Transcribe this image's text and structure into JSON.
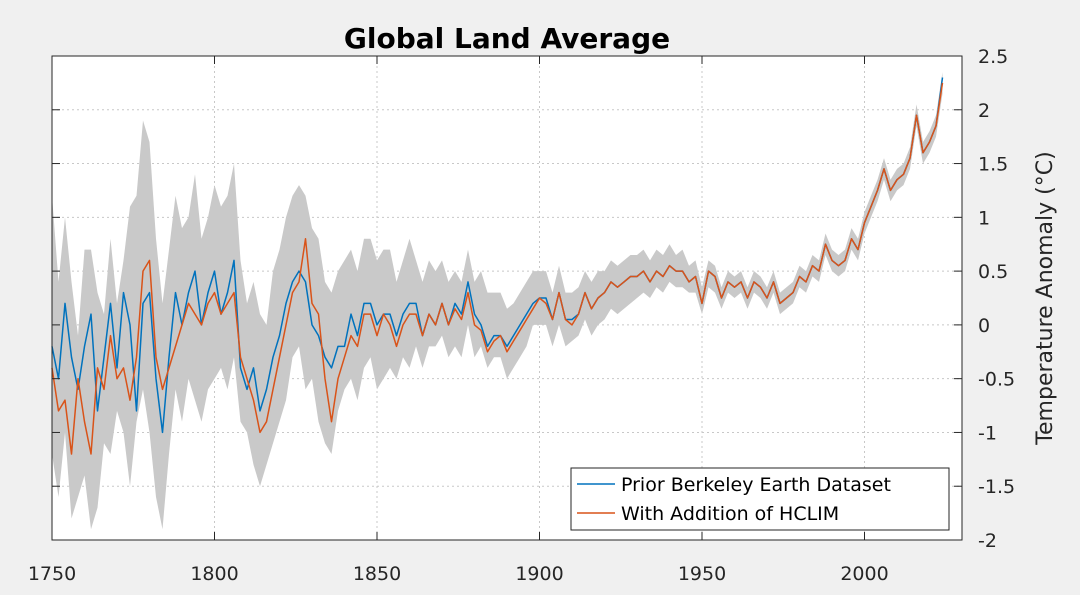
{
  "chart_data": {
    "type": "line",
    "title": "Global Land Average",
    "xlabel": "",
    "ylabel": "Temperature Anomaly (°C)",
    "xlim": [
      1750,
      2030
    ],
    "ylim": [
      -2,
      2.5
    ],
    "y_axis_side": "right",
    "grid": true,
    "x_ticks": [
      1750,
      1800,
      1850,
      1900,
      1950,
      2000
    ],
    "x_tick_labels": [
      "1750",
      "1800",
      "1850",
      "1900",
      "1950",
      "2000"
    ],
    "y_ticks": [
      -2,
      -1.5,
      -1,
      -0.5,
      0,
      0.5,
      1,
      1.5,
      2,
      2.5
    ],
    "y_tick_labels": [
      "-2",
      "-1.5",
      "-1",
      "-0.5",
      "0",
      "0.5",
      "1",
      "1.5",
      "2",
      "2.5"
    ],
    "legend_position": "bottom-right",
    "x": [
      1750,
      1752,
      1754,
      1756,
      1758,
      1760,
      1762,
      1764,
      1766,
      1768,
      1770,
      1772,
      1774,
      1776,
      1778,
      1780,
      1782,
      1784,
      1786,
      1788,
      1790,
      1792,
      1794,
      1796,
      1798,
      1800,
      1802,
      1804,
      1806,
      1808,
      1810,
      1812,
      1814,
      1816,
      1818,
      1820,
      1822,
      1824,
      1826,
      1828,
      1830,
      1832,
      1834,
      1836,
      1838,
      1840,
      1842,
      1844,
      1846,
      1848,
      1850,
      1852,
      1854,
      1856,
      1858,
      1860,
      1862,
      1864,
      1866,
      1868,
      1870,
      1872,
      1874,
      1876,
      1878,
      1880,
      1882,
      1884,
      1886,
      1888,
      1890,
      1892,
      1894,
      1896,
      1898,
      1900,
      1902,
      1904,
      1906,
      1908,
      1910,
      1912,
      1914,
      1916,
      1918,
      1920,
      1922,
      1924,
      1926,
      1928,
      1930,
      1932,
      1934,
      1936,
      1938,
      1940,
      1942,
      1944,
      1946,
      1948,
      1950,
      1952,
      1954,
      1956,
      1958,
      1960,
      1962,
      1964,
      1966,
      1968,
      1970,
      1972,
      1974,
      1976,
      1978,
      1980,
      1982,
      1984,
      1986,
      1988,
      1990,
      1992,
      1994,
      1996,
      1998,
      2000,
      2002,
      2004,
      2006,
      2008,
      2010,
      2012,
      2014,
      2016,
      2018,
      2020,
      2022,
      2024
    ],
    "uncertainty_band": {
      "name": "Uncertainty",
      "color": "#c9c9c9",
      "lower": [
        -1.2,
        -1.6,
        -1.0,
        -1.8,
        -1.6,
        -1.4,
        -1.9,
        -1.7,
        -1.1,
        -1.2,
        -0.8,
        -1.0,
        -1.5,
        -0.9,
        -0.6,
        -1.0,
        -1.6,
        -1.9,
        -1.2,
        -0.6,
        -0.9,
        -0.5,
        -0.7,
        -0.9,
        -0.6,
        -0.5,
        -0.4,
        -0.6,
        -0.3,
        -0.9,
        -1.0,
        -1.3,
        -1.5,
        -1.3,
        -1.1,
        -0.9,
        -0.7,
        -0.3,
        -0.2,
        -0.6,
        -0.5,
        -0.9,
        -1.1,
        -1.2,
        -0.8,
        -0.6,
        -0.5,
        -0.7,
        -0.4,
        -0.3,
        -0.6,
        -0.5,
        -0.4,
        -0.5,
        -0.3,
        -0.4,
        -0.2,
        -0.4,
        -0.2,
        -0.2,
        -0.1,
        -0.3,
        -0.2,
        -0.3,
        0.0,
        -0.3,
        -0.2,
        -0.4,
        -0.3,
        -0.3,
        -0.5,
        -0.4,
        -0.3,
        -0.2,
        0.0,
        0.0,
        0.0,
        -0.2,
        0.0,
        -0.2,
        -0.15,
        -0.1,
        0.05,
        -0.1,
        0.0,
        0.05,
        0.15,
        0.1,
        0.15,
        0.2,
        0.25,
        0.3,
        0.25,
        0.35,
        0.3,
        0.4,
        0.35,
        0.35,
        0.3,
        0.3,
        0.1,
        0.35,
        0.3,
        0.15,
        0.3,
        0.25,
        0.3,
        0.15,
        0.3,
        0.25,
        0.15,
        0.3,
        0.1,
        0.15,
        0.2,
        0.35,
        0.3,
        0.45,
        0.4,
        0.65,
        0.5,
        0.45,
        0.5,
        0.7,
        0.6,
        0.85,
        1.0,
        1.15,
        1.35,
        1.15,
        1.25,
        1.3,
        1.45,
        1.85,
        1.5,
        1.6,
        1.75,
        2.15
      ],
      "upper": [
        1.2,
        0.4,
        1.0,
        0.4,
        -0.1,
        0.7,
        0.7,
        0.3,
        0.1,
        0.8,
        0.2,
        0.6,
        1.1,
        1.2,
        1.9,
        1.7,
        0.8,
        0.2,
        0.7,
        1.2,
        0.9,
        1.0,
        1.4,
        0.8,
        1.0,
        1.3,
        1.1,
        1.2,
        1.5,
        0.6,
        0.2,
        0.4,
        0.1,
        0.0,
        0.5,
        0.7,
        1.0,
        1.2,
        1.3,
        1.2,
        0.9,
        0.8,
        0.4,
        0.3,
        0.5,
        0.6,
        0.7,
        0.5,
        0.8,
        0.8,
        0.6,
        0.7,
        0.7,
        0.4,
        0.6,
        0.8,
        0.6,
        0.4,
        0.6,
        0.5,
        0.6,
        0.4,
        0.5,
        0.4,
        0.7,
        0.4,
        0.5,
        0.3,
        0.3,
        0.3,
        0.15,
        0.2,
        0.3,
        0.4,
        0.5,
        0.5,
        0.5,
        0.3,
        0.55,
        0.3,
        0.3,
        0.35,
        0.5,
        0.4,
        0.5,
        0.5,
        0.6,
        0.55,
        0.6,
        0.65,
        0.65,
        0.7,
        0.6,
        0.7,
        0.65,
        0.75,
        0.65,
        0.7,
        0.55,
        0.6,
        0.35,
        0.6,
        0.55,
        0.35,
        0.5,
        0.45,
        0.5,
        0.35,
        0.5,
        0.45,
        0.35,
        0.5,
        0.3,
        0.35,
        0.4,
        0.55,
        0.5,
        0.65,
        0.6,
        0.85,
        0.7,
        0.65,
        0.7,
        0.9,
        0.8,
        1.05,
        1.2,
        1.35,
        1.55,
        1.35,
        1.45,
        1.5,
        1.65,
        2.05,
        1.7,
        1.8,
        1.95,
        2.35
      ]
    },
    "series": [
      {
        "name": "Prior Berkeley Earth Dataset",
        "color": "#0072bd",
        "values": [
          -0.2,
          -0.5,
          0.2,
          -0.3,
          -0.6,
          -0.2,
          0.1,
          -0.8,
          -0.3,
          0.2,
          -0.4,
          0.3,
          0.0,
          -0.8,
          0.2,
          0.3,
          -0.5,
          -1.0,
          -0.3,
          0.3,
          0.0,
          0.3,
          0.5,
          0.0,
          0.3,
          0.5,
          0.1,
          0.3,
          0.6,
          -0.4,
          -0.6,
          -0.4,
          -0.8,
          -0.6,
          -0.3,
          -0.1,
          0.2,
          0.4,
          0.5,
          0.4,
          0.0,
          -0.1,
          -0.3,
          -0.4,
          -0.2,
          -0.2,
          0.1,
          -0.1,
          0.2,
          0.2,
          0.0,
          0.1,
          0.1,
          -0.1,
          0.1,
          0.2,
          0.2,
          -0.1,
          0.1,
          0.0,
          0.2,
          0.0,
          0.2,
          0.1,
          0.4,
          0.1,
          0.0,
          -0.2,
          -0.1,
          -0.1,
          -0.2,
          -0.1,
          0.0,
          0.1,
          0.2,
          0.25,
          0.25,
          0.05,
          0.3,
          0.05,
          0.05,
          0.1,
          0.3,
          0.15,
          0.25,
          0.3,
          0.4,
          0.35,
          0.4,
          0.45,
          0.45,
          0.5,
          0.4,
          0.5,
          0.45,
          0.55,
          0.5,
          0.5,
          0.4,
          0.45,
          0.2,
          0.5,
          0.45,
          0.25,
          0.4,
          0.35,
          0.4,
          0.25,
          0.4,
          0.35,
          0.25,
          0.4,
          0.2,
          0.25,
          0.3,
          0.45,
          0.4,
          0.55,
          0.5,
          0.75,
          0.6,
          0.55,
          0.6,
          0.8,
          0.7,
          0.95,
          1.1,
          1.25,
          1.45,
          1.25,
          1.35,
          1.4,
          1.55,
          1.95,
          1.6,
          1.7,
          1.85,
          2.3
        ]
      },
      {
        "name": "With Addition of HCLIM",
        "color": "#d95319",
        "values": [
          -0.4,
          -0.8,
          -0.7,
          -1.2,
          -0.5,
          -0.9,
          -1.2,
          -0.4,
          -0.6,
          -0.1,
          -0.5,
          -0.4,
          -0.7,
          -0.3,
          0.5,
          0.6,
          -0.3,
          -0.6,
          -0.4,
          -0.2,
          0.0,
          0.2,
          0.1,
          0.0,
          0.2,
          0.3,
          0.1,
          0.2,
          0.3,
          -0.3,
          -0.5,
          -0.7,
          -1.0,
          -0.9,
          -0.6,
          -0.3,
          0.0,
          0.3,
          0.4,
          0.8,
          0.2,
          0.1,
          -0.5,
          -0.9,
          -0.5,
          -0.3,
          -0.1,
          -0.2,
          0.1,
          0.1,
          -0.1,
          0.1,
          0.0,
          -0.2,
          0.0,
          0.1,
          0.1,
          -0.1,
          0.1,
          0.0,
          0.2,
          0.0,
          0.15,
          0.05,
          0.3,
          0.0,
          -0.05,
          -0.25,
          -0.15,
          -0.1,
          -0.25,
          -0.15,
          -0.05,
          0.05,
          0.15,
          0.25,
          0.2,
          0.05,
          0.3,
          0.05,
          0.0,
          0.1,
          0.3,
          0.15,
          0.25,
          0.3,
          0.4,
          0.35,
          0.4,
          0.45,
          0.45,
          0.5,
          0.4,
          0.5,
          0.45,
          0.55,
          0.5,
          0.5,
          0.4,
          0.45,
          0.2,
          0.5,
          0.45,
          0.25,
          0.4,
          0.35,
          0.4,
          0.25,
          0.4,
          0.35,
          0.25,
          0.4,
          0.2,
          0.25,
          0.3,
          0.45,
          0.4,
          0.55,
          0.5,
          0.75,
          0.6,
          0.55,
          0.6,
          0.8,
          0.7,
          0.95,
          1.1,
          1.25,
          1.45,
          1.25,
          1.35,
          1.4,
          1.55,
          1.95,
          1.6,
          1.7,
          1.85,
          2.25
        ]
      }
    ]
  }
}
